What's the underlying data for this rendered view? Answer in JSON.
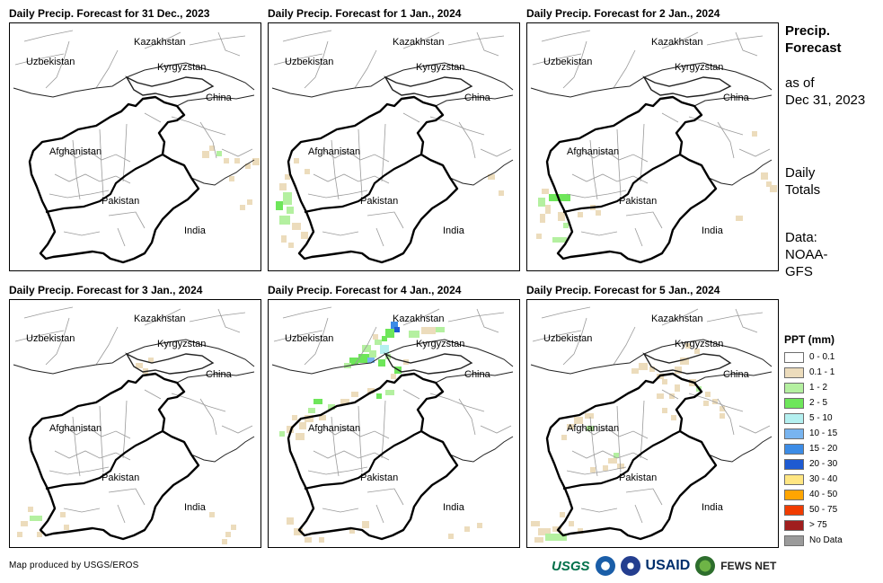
{
  "panels": [
    {
      "title": "Daily Precip. Forecast for 31 Dec., 2023"
    },
    {
      "title": "Daily Precip. Forecast for 1 Jan., 2024"
    },
    {
      "title": "Daily Precip. Forecast for 2 Jan., 2024"
    },
    {
      "title": "Daily Precip. Forecast for 3 Jan., 2024"
    },
    {
      "title": "Daily Precip. Forecast for 4 Jan., 2024"
    },
    {
      "title": "Daily Precip. Forecast for 5 Jan., 2024"
    }
  ],
  "map_labels": {
    "kazakhstan": "Kazakhstan",
    "uzbekistan": "Uzbekistan",
    "kyrgyzstan": "Kyrgyzstan",
    "china": "China",
    "afghanistan": "Afghanistan",
    "pakistan": "Pakistan",
    "india": "India"
  },
  "side": {
    "title_line1": "Precip.",
    "title_line2": "Forecast",
    "asof_line1": "as of",
    "asof_line2": "Dec 31, 2023",
    "totals_line1": "Daily",
    "totals_line2": "Totals",
    "source_line1": "Data:",
    "source_line2": "NOAA-",
    "source_line3": "GFS"
  },
  "legend": {
    "title": "PPT (mm)",
    "items": [
      {
        "label": "0 - 0.1",
        "color": "#ffffff"
      },
      {
        "label": "0.1 - 1",
        "color": "#ecdcbc"
      },
      {
        "label": "1 - 2",
        "color": "#b4f0a0"
      },
      {
        "label": "2 - 5",
        "color": "#6ee65a"
      },
      {
        "label": "5 - 10",
        "color": "#b4f0f0"
      },
      {
        "label": "10 - 15",
        "color": "#78b4f0"
      },
      {
        "label": "15 - 20",
        "color": "#3c8ce6"
      },
      {
        "label": "20 - 30",
        "color": "#1e5ad2"
      },
      {
        "label": "30 - 40",
        "color": "#ffe682"
      },
      {
        "label": "40 - 50",
        "color": "#ffa500"
      },
      {
        "label": "50 - 75",
        "color": "#f03c00"
      },
      {
        "label": "> 75",
        "color": "#a01e1e"
      },
      {
        "label": "No Data",
        "color": "#9b9b9b"
      }
    ]
  },
  "footer": {
    "credit": "Map produced by USGS/EROS",
    "logo_usgs": "USGS",
    "logo_usaid": "USAID",
    "logo_fews": "FEWS NET"
  }
}
